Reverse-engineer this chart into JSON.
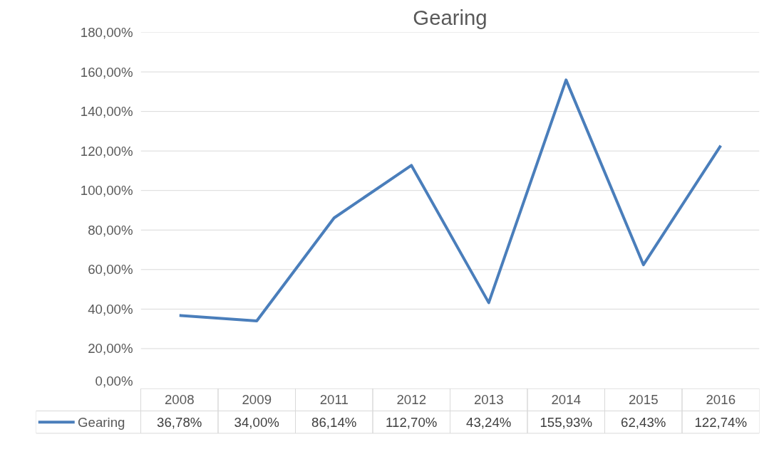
{
  "chart_data": {
    "type": "line",
    "title": "Gearing",
    "categories": [
      "2008",
      "2009",
      "2011",
      "2012",
      "2013",
      "2014",
      "2015",
      "2016"
    ],
    "series": [
      {
        "name": "Gearing",
        "color": "#4a7ebb",
        "values": [
          36.78,
          34.0,
          86.14,
          112.7,
          43.24,
          155.93,
          62.43,
          122.74
        ],
        "value_labels": [
          "36,78%",
          "34,00%",
          "86,14%",
          "112,70%",
          "43,24%",
          "155,93%",
          "62,43%",
          "122,74%"
        ]
      }
    ],
    "ylim": [
      0,
      180
    ],
    "yticks": [
      {
        "value": 0,
        "label": "0,00%"
      },
      {
        "value": 20,
        "label": "20,00%"
      },
      {
        "value": 40,
        "label": "40,00%"
      },
      {
        "value": 60,
        "label": "60,00%"
      },
      {
        "value": 80,
        "label": "80,00%"
      },
      {
        "value": 100,
        "label": "100,00%"
      },
      {
        "value": 120,
        "label": "120,00%"
      },
      {
        "value": 140,
        "label": "140,00%"
      },
      {
        "value": 160,
        "label": "160,00%"
      },
      {
        "value": 180,
        "label": "180,00%"
      }
    ],
    "grid": "y",
    "legend": "bottom",
    "marker": "none",
    "line_style": "solid"
  }
}
